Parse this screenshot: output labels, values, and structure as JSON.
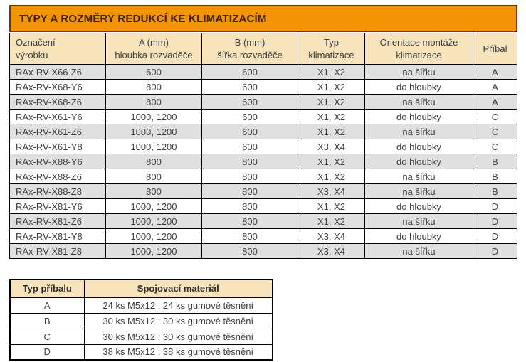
{
  "page": {
    "title": "TYPY A ROZMĚRY REDUKCÍ KE KLIMATIZACÍM"
  },
  "colors": {
    "title_bg": "#F39404",
    "title_border": "#7B3503",
    "title_text": "#421F00",
    "header_bg": "#F7E3BC",
    "row_bg": "#FFFFFF",
    "row_alt_bg": "#E0E0E0",
    "cell_text": "#3F3F3F",
    "table_border": "#000000"
  },
  "main_table": {
    "columns": [
      {
        "line1": "Označení",
        "line2": "výrobku"
      },
      {
        "line1": "A (mm)",
        "line2": "hloubka rozvaděče"
      },
      {
        "line1": "B (mm)",
        "line2": "šířka rozvaděče"
      },
      {
        "line1": "Typ",
        "line2": "klimatizace"
      },
      {
        "line1": "Orientace montáže",
        "line2": "klimatizace"
      },
      {
        "line1": "Příbal",
        "line2": ""
      }
    ],
    "rows": [
      [
        "RAx-RV-X66-Z6",
        "600",
        "600",
        "X1, X2",
        "na šířku",
        "A"
      ],
      [
        "RAx-RV-X68-Y6",
        "800",
        "600",
        "X1, X2",
        "do hloubky",
        "A"
      ],
      [
        "RAx-RV-X68-Z6",
        "800",
        "600",
        "X1, X2",
        "na šířku",
        "A"
      ],
      [
        "RAx-RV-X61-Y6",
        "1000, 1200",
        "600",
        "X1, X2",
        "do hloubky",
        "C"
      ],
      [
        "RAx-RV-X61-Z6",
        "1000, 1200",
        "600",
        "X1, X2",
        "na šířku",
        "C"
      ],
      [
        "RAx-RV-X61-Y8",
        "1000, 1200",
        "600",
        "X3, X4",
        "do hloubky",
        "C"
      ],
      [
        "RAx-RV-X88-Y6",
        "800",
        "800",
        "X1, X2",
        "do hloubky",
        "B"
      ],
      [
        "RAx-RV-X88-Z6",
        "800",
        "800",
        "X1, X2",
        "na šířku",
        "B"
      ],
      [
        "RAx-RV-X88-Z8",
        "800",
        "800",
        "X3, X4",
        "na šířku",
        "B"
      ],
      [
        "RAx-RV-X81-Y6",
        "1000, 1200",
        "800",
        "X1, X2",
        "do hloubky",
        "D"
      ],
      [
        "RAx-RV-X81-Z6",
        "1000, 1200",
        "800",
        "X1, X2",
        "na šířku",
        "D"
      ],
      [
        "RAx-RV-X81-Y8",
        "1000, 1200",
        "800",
        "X3, X4",
        "do hloubky",
        "D"
      ],
      [
        "RAx-RV-X81-Z8",
        "1000, 1200",
        "800",
        "X3, X4",
        "na šířku",
        "D"
      ]
    ]
  },
  "accessories_table": {
    "columns": [
      "Typ příbalu",
      "Spojovací materiál"
    ],
    "rows": [
      [
        "A",
        "24 ks M5x12 ; 24 ks gumové těsnění"
      ],
      [
        "B",
        "30 ks M5x12 ; 30 ks gumové těsnění"
      ],
      [
        "C",
        "30 ks M5x12 ; 30 ks gumové těsnění"
      ],
      [
        "D",
        "38 ks M5x12 ; 38 ks gumové těsnění"
      ]
    ]
  }
}
